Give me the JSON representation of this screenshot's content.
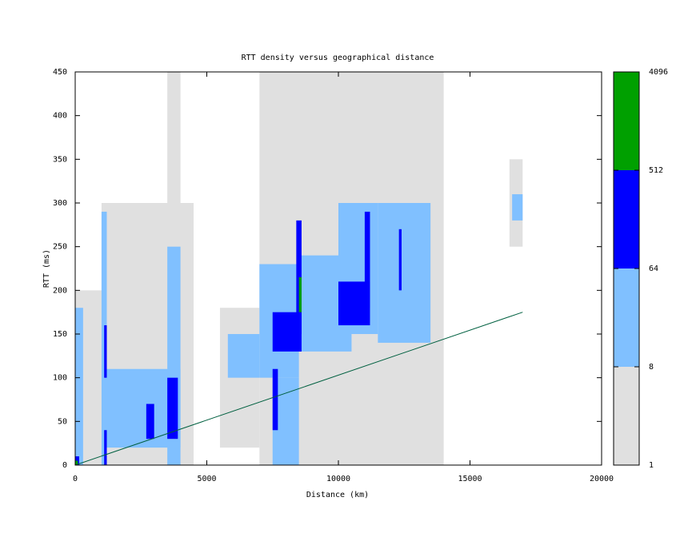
{
  "chart_data": {
    "type": "density",
    "title": "RTT density versus geographical distance",
    "x_label": "Distance (km)",
    "y_label": "RTT (ms)",
    "xlim": [
      0,
      20000
    ],
    "xticks": [
      0,
      5000,
      10000,
      15000,
      20000
    ],
    "ylim": [
      0,
      450
    ],
    "yticks": [
      0,
      50,
      100,
      150,
      200,
      250,
      300,
      350,
      400,
      450
    ],
    "colorbar": {
      "log_scale": true,
      "ticks": [
        1,
        8,
        64,
        512,
        4096
      ],
      "colors": [
        "#e0e0e0",
        "#80c0ff",
        "#0000ff",
        "#00a000"
      ]
    },
    "cells": [
      {
        "x": [
          0,
          1500
        ],
        "y": [
          0,
          200
        ],
        "count": 3
      },
      {
        "x": [
          1000,
          4500
        ],
        "y": [
          0,
          300
        ],
        "count": 2
      },
      {
        "x": [
          3500,
          4000
        ],
        "y": [
          0,
          450
        ],
        "count": 2
      },
      {
        "x": [
          7000,
          10000
        ],
        "y": [
          0,
          450
        ],
        "count": 3
      },
      {
        "x": [
          8000,
          13000
        ],
        "y": [
          100,
          330
        ],
        "count": 3
      },
      {
        "x": [
          10000,
          14000
        ],
        "y": [
          0,
          450
        ],
        "count": 2
      },
      {
        "x": [
          16500,
          17000
        ],
        "y": [
          250,
          350
        ],
        "count": 2
      },
      {
        "x": [
          5500,
          7000
        ],
        "y": [
          20,
          180
        ],
        "count": 2
      },
      {
        "x": [
          0,
          300
        ],
        "y": [
          0,
          180
        ],
        "count": 20
      },
      {
        "x": [
          1000,
          1200
        ],
        "y": [
          0,
          290
        ],
        "count": 20
      },
      {
        "x": [
          1200,
          4000
        ],
        "y": [
          20,
          110
        ],
        "count": 20
      },
      {
        "x": [
          3500,
          4000
        ],
        "y": [
          0,
          250
        ],
        "count": 20
      },
      {
        "x": [
          5800,
          7000
        ],
        "y": [
          100,
          150
        ],
        "count": 15
      },
      {
        "x": [
          7000,
          8500
        ],
        "y": [
          100,
          230
        ],
        "count": 30
      },
      {
        "x": [
          8500,
          10500
        ],
        "y": [
          130,
          240
        ],
        "count": 30
      },
      {
        "x": [
          10000,
          11500
        ],
        "y": [
          150,
          300
        ],
        "count": 30
      },
      {
        "x": [
          11500,
          13500
        ],
        "y": [
          140,
          300
        ],
        "count": 15
      },
      {
        "x": [
          16600,
          17000
        ],
        "y": [
          280,
          310
        ],
        "count": 20
      },
      {
        "x": [
          7500,
          8500
        ],
        "y": [
          0,
          100
        ],
        "count": 15
      },
      {
        "x": [
          1100,
          1200
        ],
        "y": [
          100,
          160
        ],
        "count": 100
      },
      {
        "x": [
          1100,
          1200
        ],
        "y": [
          0,
          40
        ],
        "count": 100
      },
      {
        "x": [
          2700,
          3000
        ],
        "y": [
          30,
          70
        ],
        "count": 100
      },
      {
        "x": [
          3500,
          3900
        ],
        "y": [
          30,
          100
        ],
        "count": 150
      },
      {
        "x": [
          7500,
          8600
        ],
        "y": [
          130,
          175
        ],
        "count": 200
      },
      {
        "x": [
          7500,
          7700
        ],
        "y": [
          40,
          110
        ],
        "count": 100
      },
      {
        "x": [
          8400,
          8600
        ],
        "y": [
          150,
          280
        ],
        "count": 150
      },
      {
        "x": [
          10000,
          11200
        ],
        "y": [
          160,
          210
        ],
        "count": 120
      },
      {
        "x": [
          11000,
          11200
        ],
        "y": [
          180,
          290
        ],
        "count": 100
      },
      {
        "x": [
          12300,
          12400
        ],
        "y": [
          200,
          270
        ],
        "count": 100
      },
      {
        "x": [
          0,
          150
        ],
        "y": [
          0,
          10
        ],
        "count": 300
      },
      {
        "x": [
          8500,
          8600
        ],
        "y": [
          175,
          215
        ],
        "count": 600
      },
      {
        "x": [
          0,
          100
        ],
        "y": [
          0,
          5
        ],
        "count": 1000
      }
    ],
    "series": [
      {
        "x": [
          0,
          17000
        ],
        "values": [
          0,
          175
        ],
        "color": "#006040"
      }
    ]
  }
}
